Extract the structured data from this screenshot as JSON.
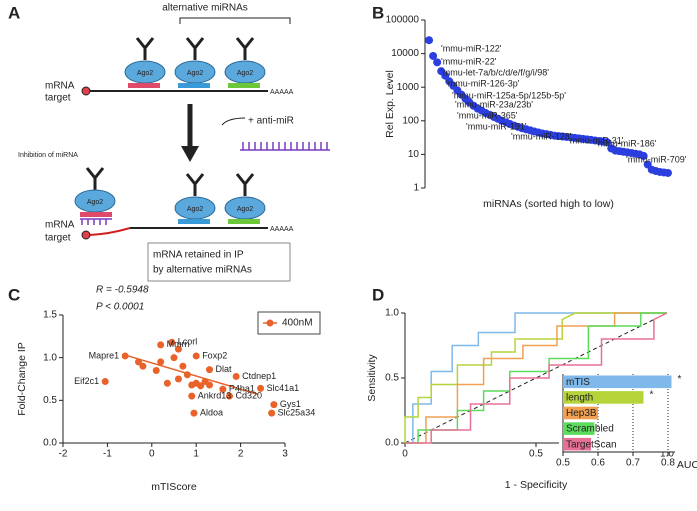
{
  "panel_labels": [
    "A",
    "B",
    "C",
    "D"
  ],
  "diagram": {
    "top_label": "alternative miRNAs",
    "target_top": [
      "mRNA",
      "target"
    ],
    "polya_top": "AAAAA",
    "ago_labels": [
      "Ago2",
      "Ago2",
      "Ago2",
      "Ago2",
      "Ago2",
      "Ago2"
    ],
    "anti_mir": "+ anti-miR",
    "inhibition": "Inhibition of miRNA",
    "target_bottom": [
      "mRNA",
      "target"
    ],
    "polya_bottom": "AAAAA",
    "retained": [
      "mRNA retained in IP",
      "by alternative miRNAs"
    ]
  },
  "chart_data": [
    {
      "type": "scatter",
      "ylabel": "Rel Exp. Level",
      "xlabel": "miRNAs (sorted high to low)",
      "log_y": true,
      "color": "#2b3fe0",
      "x": [
        1,
        2,
        3,
        4,
        5,
        6,
        7,
        8,
        9,
        10,
        11,
        12,
        13,
        14,
        15,
        16,
        17,
        18,
        19,
        20,
        21,
        22,
        23,
        24,
        25,
        26,
        27,
        28,
        29,
        30,
        31,
        32,
        33,
        34,
        35,
        36,
        37,
        38,
        39,
        40,
        41,
        42,
        43,
        44,
        45,
        46,
        47,
        48,
        49,
        50,
        51,
        52,
        53,
        54,
        55,
        56,
        57,
        58,
        59,
        60
      ],
      "values": [
        25000,
        8500,
        5500,
        3000,
        2200,
        1500,
        1100,
        800,
        600,
        450,
        350,
        280,
        230,
        200,
        170,
        150,
        130,
        115,
        100,
        90,
        80,
        72,
        66,
        60,
        56,
        52,
        48,
        45,
        42,
        40,
        38,
        36,
        35,
        34,
        33,
        32,
        31,
        30,
        29,
        28,
        27,
        26,
        25,
        24,
        23,
        15,
        13,
        12.5,
        12,
        11.5,
        11,
        10.5,
        10,
        9,
        5,
        3.5,
        3.2,
        3,
        2.9,
        2.8
      ],
      "xlim": [
        0,
        61
      ],
      "ylim": [
        1,
        100000
      ],
      "yticks": [
        1,
        10,
        100,
        1000,
        10000,
        100000
      ],
      "annotations": [
        "'mmu-miR-122'",
        "'mmu-miR-22'",
        "'mmu-let-7a/b/c/d/e/f/g/i/98'",
        "'mmu-miR-126-3p'",
        "'mmu-miR-125a-5p/125b-5p'",
        "'mmu-miR-23a/23b'",
        "'mmu-miR-365'",
        "'mmu-miR-191'",
        "'mmu-miR-128'",
        "'mmu-miR-31'",
        "'mmu-miR-186'",
        "'mmu-miR-709'"
      ]
    },
    {
      "type": "scatter",
      "xlabel": "mTIScore",
      "ylabel": "Fold-Change IP",
      "color": "#e8622a",
      "stats": [
        "R = -0.5948",
        "P < 0.0001"
      ],
      "legend": "400nM",
      "x": [
        -1.05,
        -0.6,
        0.45,
        0.2,
        1.0,
        1.9,
        2.45,
        2.75,
        2.7,
        0.95,
        1.75,
        1.6,
        0.9,
        1.3,
        -0.3,
        -0.2,
        0.1,
        0.2,
        0.5,
        0.6,
        0.7,
        0.8,
        0.9,
        1.0,
        1.1,
        1.2,
        0.6,
        0.35,
        1.3
      ],
      "values": [
        0.72,
        1.02,
        1.18,
        1.15,
        1.02,
        0.78,
        0.64,
        0.45,
        0.35,
        0.35,
        0.55,
        0.63,
        0.55,
        0.86,
        0.95,
        0.9,
        0.85,
        0.95,
        1.0,
        1.1,
        0.9,
        0.8,
        0.68,
        0.7,
        0.67,
        0.72,
        0.75,
        0.7,
        0.68
      ],
      "point_labels": [
        "Eif2c1",
        "Mapre1",
        "Lcorl",
        "Mmrn",
        "Foxp2",
        "Ctdnep1",
        "Slc41a1",
        "Gys1",
        "Slc25a34",
        "Aldoa",
        "Cd320",
        "P4ha1",
        "Ankrd13",
        "Dlat",
        null,
        null,
        null,
        null,
        null,
        null,
        null,
        null,
        null,
        null,
        null,
        null,
        null,
        null,
        null
      ],
      "trendline": {
        "x": [
          -0.6,
          2.4
        ],
        "values": [
          1.03,
          0.57
        ]
      },
      "xlim": [
        -2,
        3
      ],
      "xticks": [
        -2,
        -1,
        0,
        1,
        2,
        3
      ],
      "ylim": [
        0,
        1.5
      ],
      "yticks": [
        {
          "value": 0,
          "label": "0.0"
        },
        0.5,
        {
          "value": 1,
          "label": "1.0"
        },
        1.5
      ]
    },
    {
      "type": "line",
      "xlabel": "1 - Specificity",
      "ylabel": "Sensitivity",
      "xlim": [
        0,
        1
      ],
      "xticks": [
        0,
        0.5,
        {
          "value": 1,
          "label": "1.0"
        }
      ],
      "ylim": [
        0,
        1
      ],
      "yticks": [
        {
          "value": 0,
          "label": "0.0"
        },
        0.5,
        {
          "value": 1,
          "label": "1.0"
        }
      ],
      "series": [
        {
          "name": "mTIS",
          "color": "#7fb8ea",
          "x": [
            0,
            0.03,
            0.03,
            0.1,
            0.1,
            0.18,
            0.18,
            0.28,
            0.28,
            0.42,
            0.42,
            1
          ],
          "values": [
            0,
            0,
            0.3,
            0.3,
            0.55,
            0.55,
            0.75,
            0.75,
            0.85,
            0.85,
            1,
            1
          ]
        },
        {
          "name": "length",
          "color": "#b5d43a",
          "x": [
            0,
            0,
            0.05,
            0.05,
            0.1,
            0.1,
            0.2,
            0.2,
            0.33,
            0.33,
            0.42,
            0.42,
            0.6,
            0.6,
            0.65,
            1
          ],
          "values": [
            0,
            0.2,
            0.2,
            0.35,
            0.35,
            0.45,
            0.45,
            0.6,
            0.6,
            0.7,
            0.7,
            0.8,
            0.8,
            0.95,
            1,
            1
          ]
        },
        {
          "name": "Hep3B",
          "color": "#f0a050",
          "x": [
            0,
            0.08,
            0.08,
            0.2,
            0.2,
            0.3,
            0.3,
            0.45,
            0.45,
            0.58,
            0.58,
            0.8,
            0.8,
            1
          ],
          "values": [
            0,
            0,
            0.2,
            0.2,
            0.45,
            0.45,
            0.65,
            0.65,
            0.75,
            0.75,
            0.9,
            0.9,
            1,
            1
          ]
        },
        {
          "name": "Scrambled",
          "color": "#5cdc5c",
          "x": [
            0,
            0.05,
            0.05,
            0.2,
            0.2,
            0.3,
            0.3,
            0.4,
            0.4,
            0.55,
            0.55,
            0.7,
            0.7,
            0.9,
            0.9,
            1
          ],
          "values": [
            0,
            0,
            0.1,
            0.1,
            0.25,
            0.25,
            0.4,
            0.4,
            0.55,
            0.55,
            0.65,
            0.65,
            0.9,
            0.9,
            1,
            1
          ]
        },
        {
          "name": "TargetScan",
          "color": "#e87095",
          "x": [
            0,
            0.1,
            0.1,
            0.25,
            0.25,
            0.4,
            0.4,
            0.55,
            0.55,
            0.75,
            0.75,
            0.95,
            0.95,
            1
          ],
          "values": [
            0,
            0,
            0.1,
            0.1,
            0.3,
            0.3,
            0.5,
            0.5,
            0.6,
            0.6,
            0.8,
            0.8,
            0.95,
            1
          ]
        }
      ]
    },
    {
      "type": "bar",
      "orientation": "horizontal",
      "xlabel": "AUC",
      "grid": true,
      "categories": [
        "mTIS",
        "length",
        "Hep3B",
        "Scrambled",
        "TargetScan"
      ],
      "values": [
        0.81,
        0.73,
        0.6,
        0.59,
        0.58
      ],
      "colors": [
        "#7fb8ea",
        "#b5d43a",
        "#f0a050",
        "#5cdc5c",
        "#e87095"
      ],
      "significance": [
        "*",
        "*",
        null,
        null,
        null
      ],
      "xlim": [
        0.5,
        0.82
      ],
      "xticks": [
        0.5,
        0.6,
        0.7,
        0.8
      ]
    }
  ]
}
